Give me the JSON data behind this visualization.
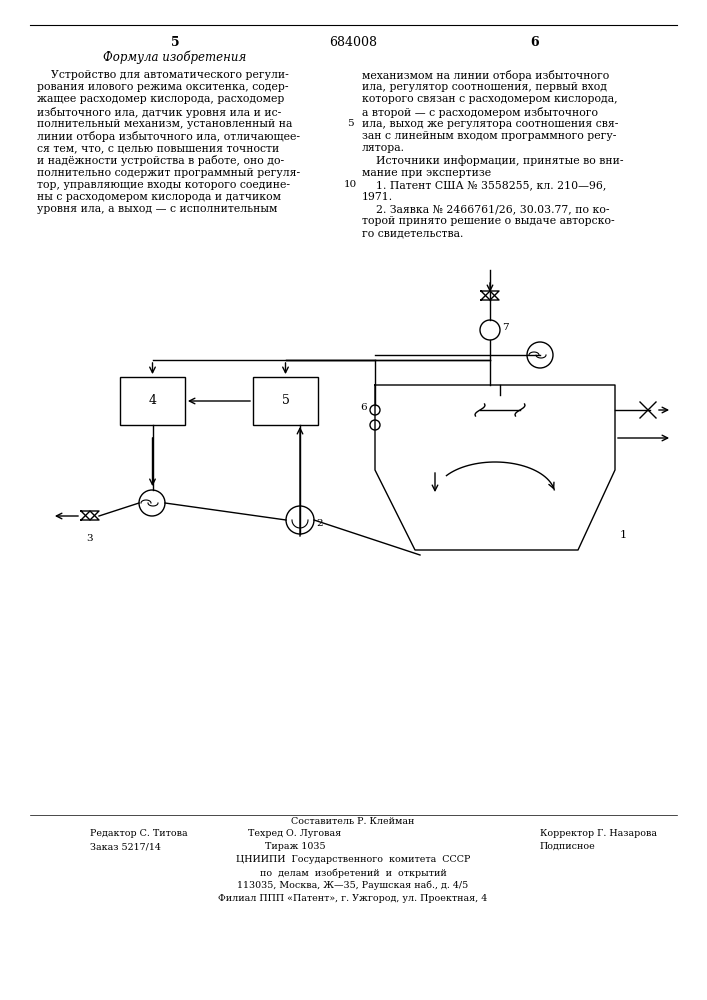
{
  "patent_number": "684008",
  "page_left": "5",
  "page_right": "6",
  "section_title": "Формула изобретения",
  "left_lines": [
    "    Устройство для автоматического регули-",
    "рования илового режима окситенка, содер-",
    "жащее расходомер кислорода, расходомер",
    "избыточного ила, датчик уровня ила и ис-",
    "полнительный механизм, установленный на",
    "линии отбора избыточного ила, отличающее-",
    "ся тем, что, с целью повышения точности",
    "и надёжности устройства в работе, оно до-",
    "полнительно содержит программный регуля-",
    "тор, управляющие входы которого соедине-",
    "ны с расходомером кислорода и датчиком",
    "уровня ила, а выход — с исполнительным"
  ],
  "right_lines": [
    "механизмом на линии отбора избыточного",
    "ила, регулятор соотношения, первый вход",
    "которого связан с расходомером кислорода,",
    "а второй — с расходомером избыточного",
    "ила, выход же регулятора соотношения свя-",
    "зан с линейным входом программного регу-",
    "лятора.",
    "    Источники информации, принятые во вни-",
    "мание при экспертизе",
    "    1. Патент США № 3558255, кл. 210—96,",
    "1971.",
    "    2. Заявка № 2466761/26, 30.03.77, по ко-",
    "торой принято решение о выдаче авторско-",
    "го свидетельства."
  ],
  "line_number_5": "5",
  "line_number_10": "10",
  "footer_editor": "Редактор С. Титова",
  "footer_order": "Заказ 5217/14",
  "footer_comp": "Составитель Р. Клейман",
  "footer_tech": "Техред О. Луговая",
  "footer_circ": "Тираж 1035",
  "footer_corr": "Корректор Г. Назарова",
  "footer_sub": "Подписное",
  "footer_tsniip1": "ЦНИИПИ  Государственного  комитета  СССР",
  "footer_tsniip2": "по  делам  изобретений  и  открытий",
  "footer_addr1": "113035, Москва, Ж—35, Раушская наб., д. 4/5",
  "footer_addr2": "Филиал ППП «Патент», г. Ужгород, ул. Проектная, 4",
  "bg_color": "#ffffff"
}
